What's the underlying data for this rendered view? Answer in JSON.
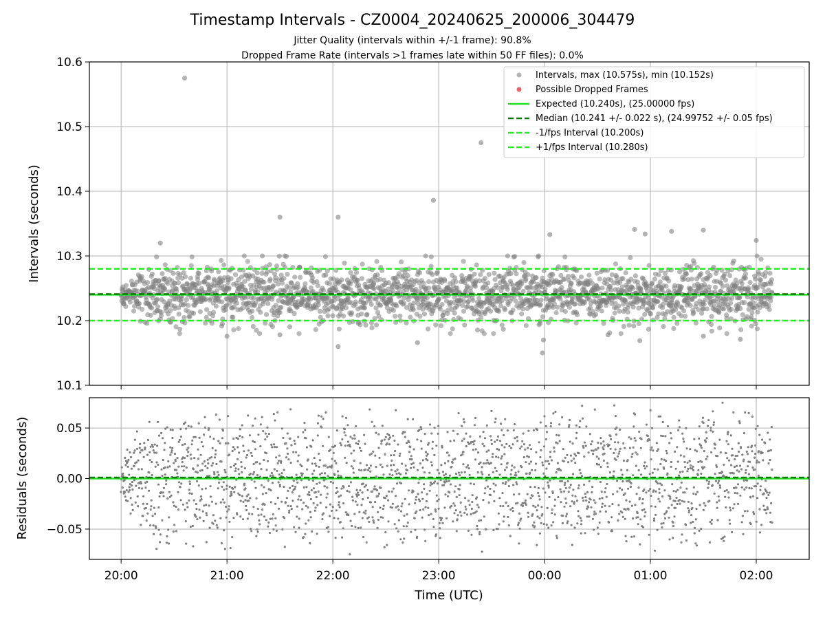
{
  "figure": {
    "title": "Timestamp Intervals - CZ0004_20240625_200006_304479",
    "subtitle_1": "Jitter Quality (intervals within +/-1 frame): 90.8%",
    "subtitle_2": "Dropped Frame Rate (intervals >1 frames late within 50 FF files): 0.0%"
  },
  "colors": {
    "points": "#808080",
    "dropped": "#e8525a",
    "expected": "#22dd22",
    "median": "#0a7a0a",
    "band": "#22ee22",
    "grid": "#b0b0b0"
  },
  "chart_data": [
    {
      "type": "scatter",
      "title": "",
      "xlabel": "",
      "ylabel": "Intervals (seconds)",
      "x_unit": "hours since 20:00 UTC",
      "xlim": [
        -0.3,
        6.5
      ],
      "ylim": [
        10.1,
        10.6
      ],
      "yticks": [
        10.1,
        10.2,
        10.3,
        10.4,
        10.5,
        10.6
      ],
      "ytick_labels": [
        "10.1",
        "10.2",
        "10.3",
        "10.4",
        "10.5",
        "10.6"
      ],
      "grid": true,
      "legend_position": "top-right",
      "lines": [
        {
          "name": "Expected (10.240s), (25.00000 fps)",
          "y": 10.24,
          "style": "solid",
          "color": "#22dd22"
        },
        {
          "name": "Median (10.241 +/- 0.022 s), (24.99752 +/- 0.05 fps)",
          "y": 10.241,
          "style": "dashed",
          "color": "#0a7a0a"
        },
        {
          "name": "-1/fps Interval (10.200s)",
          "y": 10.2,
          "style": "dashed",
          "color": "#22ee22"
        },
        {
          "name": "+1/fps Interval (10.280s)",
          "y": 10.28,
          "style": "dashed",
          "color": "#22ee22"
        }
      ],
      "series": [
        {
          "name": "Intervals, max (10.575s), min (10.152s)",
          "marker": "circle",
          "x_start": 0.0,
          "x_end": 6.15,
          "center": 10.24,
          "spread_sd": 0.022,
          "count": 2150,
          "outliers": [
            {
              "x": 0.6,
              "y": 10.575
            },
            {
              "x": 3.4,
              "y": 10.475
            },
            {
              "x": 2.95,
              "y": 10.386
            },
            {
              "x": 1.5,
              "y": 10.36
            },
            {
              "x": 2.05,
              "y": 10.36
            },
            {
              "x": 0.37,
              "y": 10.32
            },
            {
              "x": 4.05,
              "y": 10.333
            },
            {
              "x": 4.85,
              "y": 10.341
            },
            {
              "x": 4.95,
              "y": 10.334
            },
            {
              "x": 5.2,
              "y": 10.338
            },
            {
              "x": 5.5,
              "y": 10.34
            },
            {
              "x": 6.0,
              "y": 10.324
            },
            {
              "x": 3.98,
              "y": 10.15
            },
            {
              "x": 2.05,
              "y": 10.16
            },
            {
              "x": 2.8,
              "y": 10.166
            },
            {
              "x": 3.99,
              "y": 10.17
            },
            {
              "x": 1.0,
              "y": 10.176
            },
            {
              "x": 5.5,
              "y": 10.176
            },
            {
              "x": 4.6,
              "y": 10.178
            },
            {
              "x": 1.5,
              "y": 10.178
            },
            {
              "x": 5.85,
              "y": 10.171
            },
            {
              "x": 4.9,
              "y": 10.169
            }
          ]
        },
        {
          "name": "Possible Dropped Frames",
          "marker": "circle",
          "points": []
        }
      ]
    },
    {
      "type": "scatter",
      "title": "",
      "xlabel": "Time (UTC)",
      "ylabel": "Residuals (seconds)",
      "xlim": [
        -0.3,
        6.5
      ],
      "ylim": [
        -0.08,
        0.08
      ],
      "xticks": [
        0,
        1,
        2,
        3,
        4,
        5,
        6
      ],
      "xtick_labels": [
        "20:00",
        "21:00",
        "22:00",
        "23:00",
        "00:00",
        "01:00",
        "02:00"
      ],
      "yticks": [
        -0.05,
        0.0,
        0.05
      ],
      "ytick_labels": [
        "−0.05",
        "0.00",
        "0.05"
      ],
      "grid": true,
      "lines": [
        {
          "name": "Expected",
          "y": 0.0,
          "style": "solid",
          "color": "#22dd22"
        },
        {
          "name": "Median",
          "y": 0.001,
          "style": "dashed",
          "color": "#0a7a0a"
        }
      ],
      "series": [
        {
          "name": "Residuals",
          "marker": "dot",
          "x_start": 0.0,
          "x_end": 6.15,
          "center": 0.0,
          "spread_range": [
            -0.075,
            0.075
          ],
          "count": 2150
        }
      ]
    }
  ]
}
